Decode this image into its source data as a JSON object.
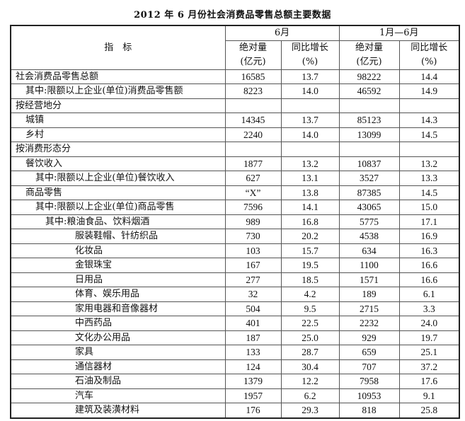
{
  "title": "2012 年 6 月份社会消费品零售总额主要数据",
  "header": {
    "indicator": "指　标",
    "period_june": "6月",
    "period_jan_june": "1月—6月",
    "abs_label": "绝对量",
    "abs_unit": "(亿元)",
    "growth_label": "同比增长",
    "growth_unit": "(%)"
  },
  "rows": [
    {
      "label": "社会消费品零售总额",
      "level": 0,
      "jun_abs": "16585",
      "jun_growth": "13.7",
      "ytd_abs": "98222",
      "ytd_growth": "14.4"
    },
    {
      "label": "其中:限额以上企业(单位)消费品零售额",
      "level": 1,
      "jun_abs": "8223",
      "jun_growth": "14.0",
      "ytd_abs": "46592",
      "ytd_growth": "14.9"
    },
    {
      "label": "按经营地分",
      "level": 0,
      "jun_abs": "",
      "jun_growth": "",
      "ytd_abs": "",
      "ytd_growth": ""
    },
    {
      "label": "城镇",
      "level": 1,
      "jun_abs": "14345",
      "jun_growth": "13.7",
      "ytd_abs": "85123",
      "ytd_growth": "14.3"
    },
    {
      "label": "乡村",
      "level": 1,
      "jun_abs": "2240",
      "jun_growth": "14.0",
      "ytd_abs": "13099",
      "ytd_growth": "14.5"
    },
    {
      "label": "按消费形态分",
      "level": 0,
      "jun_abs": "",
      "jun_growth": "",
      "ytd_abs": "",
      "ytd_growth": ""
    },
    {
      "label": "餐饮收入",
      "level": 1,
      "jun_abs": "1877",
      "jun_growth": "13.2",
      "ytd_abs": "10837",
      "ytd_growth": "13.2"
    },
    {
      "label": "其中:限额以上企业(单位)餐饮收入",
      "level": 2,
      "jun_abs": "627",
      "jun_growth": "13.1",
      "ytd_abs": "3527",
      "ytd_growth": "13.3"
    },
    {
      "label": "商品零售",
      "level": 1,
      "jun_abs": "“X”",
      "jun_growth": "13.8",
      "ytd_abs": "87385",
      "ytd_growth": "14.5"
    },
    {
      "label": "其中:限额以上企业(单位)商品零售",
      "level": 2,
      "jun_abs": "7596",
      "jun_growth": "14.1",
      "ytd_abs": "43065",
      "ytd_growth": "15.0"
    },
    {
      "label": "其中:粮油食品、饮料烟酒",
      "level": 3,
      "jun_abs": "989",
      "jun_growth": "16.8",
      "ytd_abs": "5775",
      "ytd_growth": "17.1"
    },
    {
      "label": "服装鞋帽、针纺织品",
      "level": 4,
      "jun_abs": "730",
      "jun_growth": "20.2",
      "ytd_abs": "4538",
      "ytd_growth": "16.9"
    },
    {
      "label": "化妆品",
      "level": 4,
      "jun_abs": "103",
      "jun_growth": "15.7",
      "ytd_abs": "634",
      "ytd_growth": "16.3"
    },
    {
      "label": "金银珠宝",
      "level": 4,
      "jun_abs": "167",
      "jun_growth": "19.5",
      "ytd_abs": "1100",
      "ytd_growth": "16.6"
    },
    {
      "label": "日用品",
      "level": 4,
      "jun_abs": "277",
      "jun_growth": "18.5",
      "ytd_abs": "1571",
      "ytd_growth": "16.6"
    },
    {
      "label": "体育、娱乐用品",
      "level": 4,
      "jun_abs": "32",
      "jun_growth": "4.2",
      "ytd_abs": "189",
      "ytd_growth": "6.1"
    },
    {
      "label": "家用电器和音像器材",
      "level": 4,
      "jun_abs": "504",
      "jun_growth": "9.5",
      "ytd_abs": "2715",
      "ytd_growth": "3.3"
    },
    {
      "label": "中西药品",
      "level": 4,
      "jun_abs": "401",
      "jun_growth": "22.5",
      "ytd_abs": "2232",
      "ytd_growth": "24.0"
    },
    {
      "label": "文化办公用品",
      "level": 4,
      "jun_abs": "187",
      "jun_growth": "25.0",
      "ytd_abs": "929",
      "ytd_growth": "19.7"
    },
    {
      "label": "家具",
      "level": 4,
      "jun_abs": "133",
      "jun_growth": "28.7",
      "ytd_abs": "659",
      "ytd_growth": "25.1"
    },
    {
      "label": "通信器材",
      "level": 4,
      "jun_abs": "124",
      "jun_growth": "30.4",
      "ytd_abs": "707",
      "ytd_growth": "37.2"
    },
    {
      "label": "石油及制品",
      "level": 4,
      "jun_abs": "1379",
      "jun_growth": "12.2",
      "ytd_abs": "7958",
      "ytd_growth": "17.6"
    },
    {
      "label": "汽车",
      "level": 4,
      "jun_abs": "1957",
      "jun_growth": "6.2",
      "ytd_abs": "10953",
      "ytd_growth": "9.1"
    },
    {
      "label": "建筑及装潢材料",
      "level": 4,
      "jun_abs": "176",
      "jun_growth": "29.3",
      "ytd_abs": "818",
      "ytd_growth": "25.8"
    }
  ]
}
